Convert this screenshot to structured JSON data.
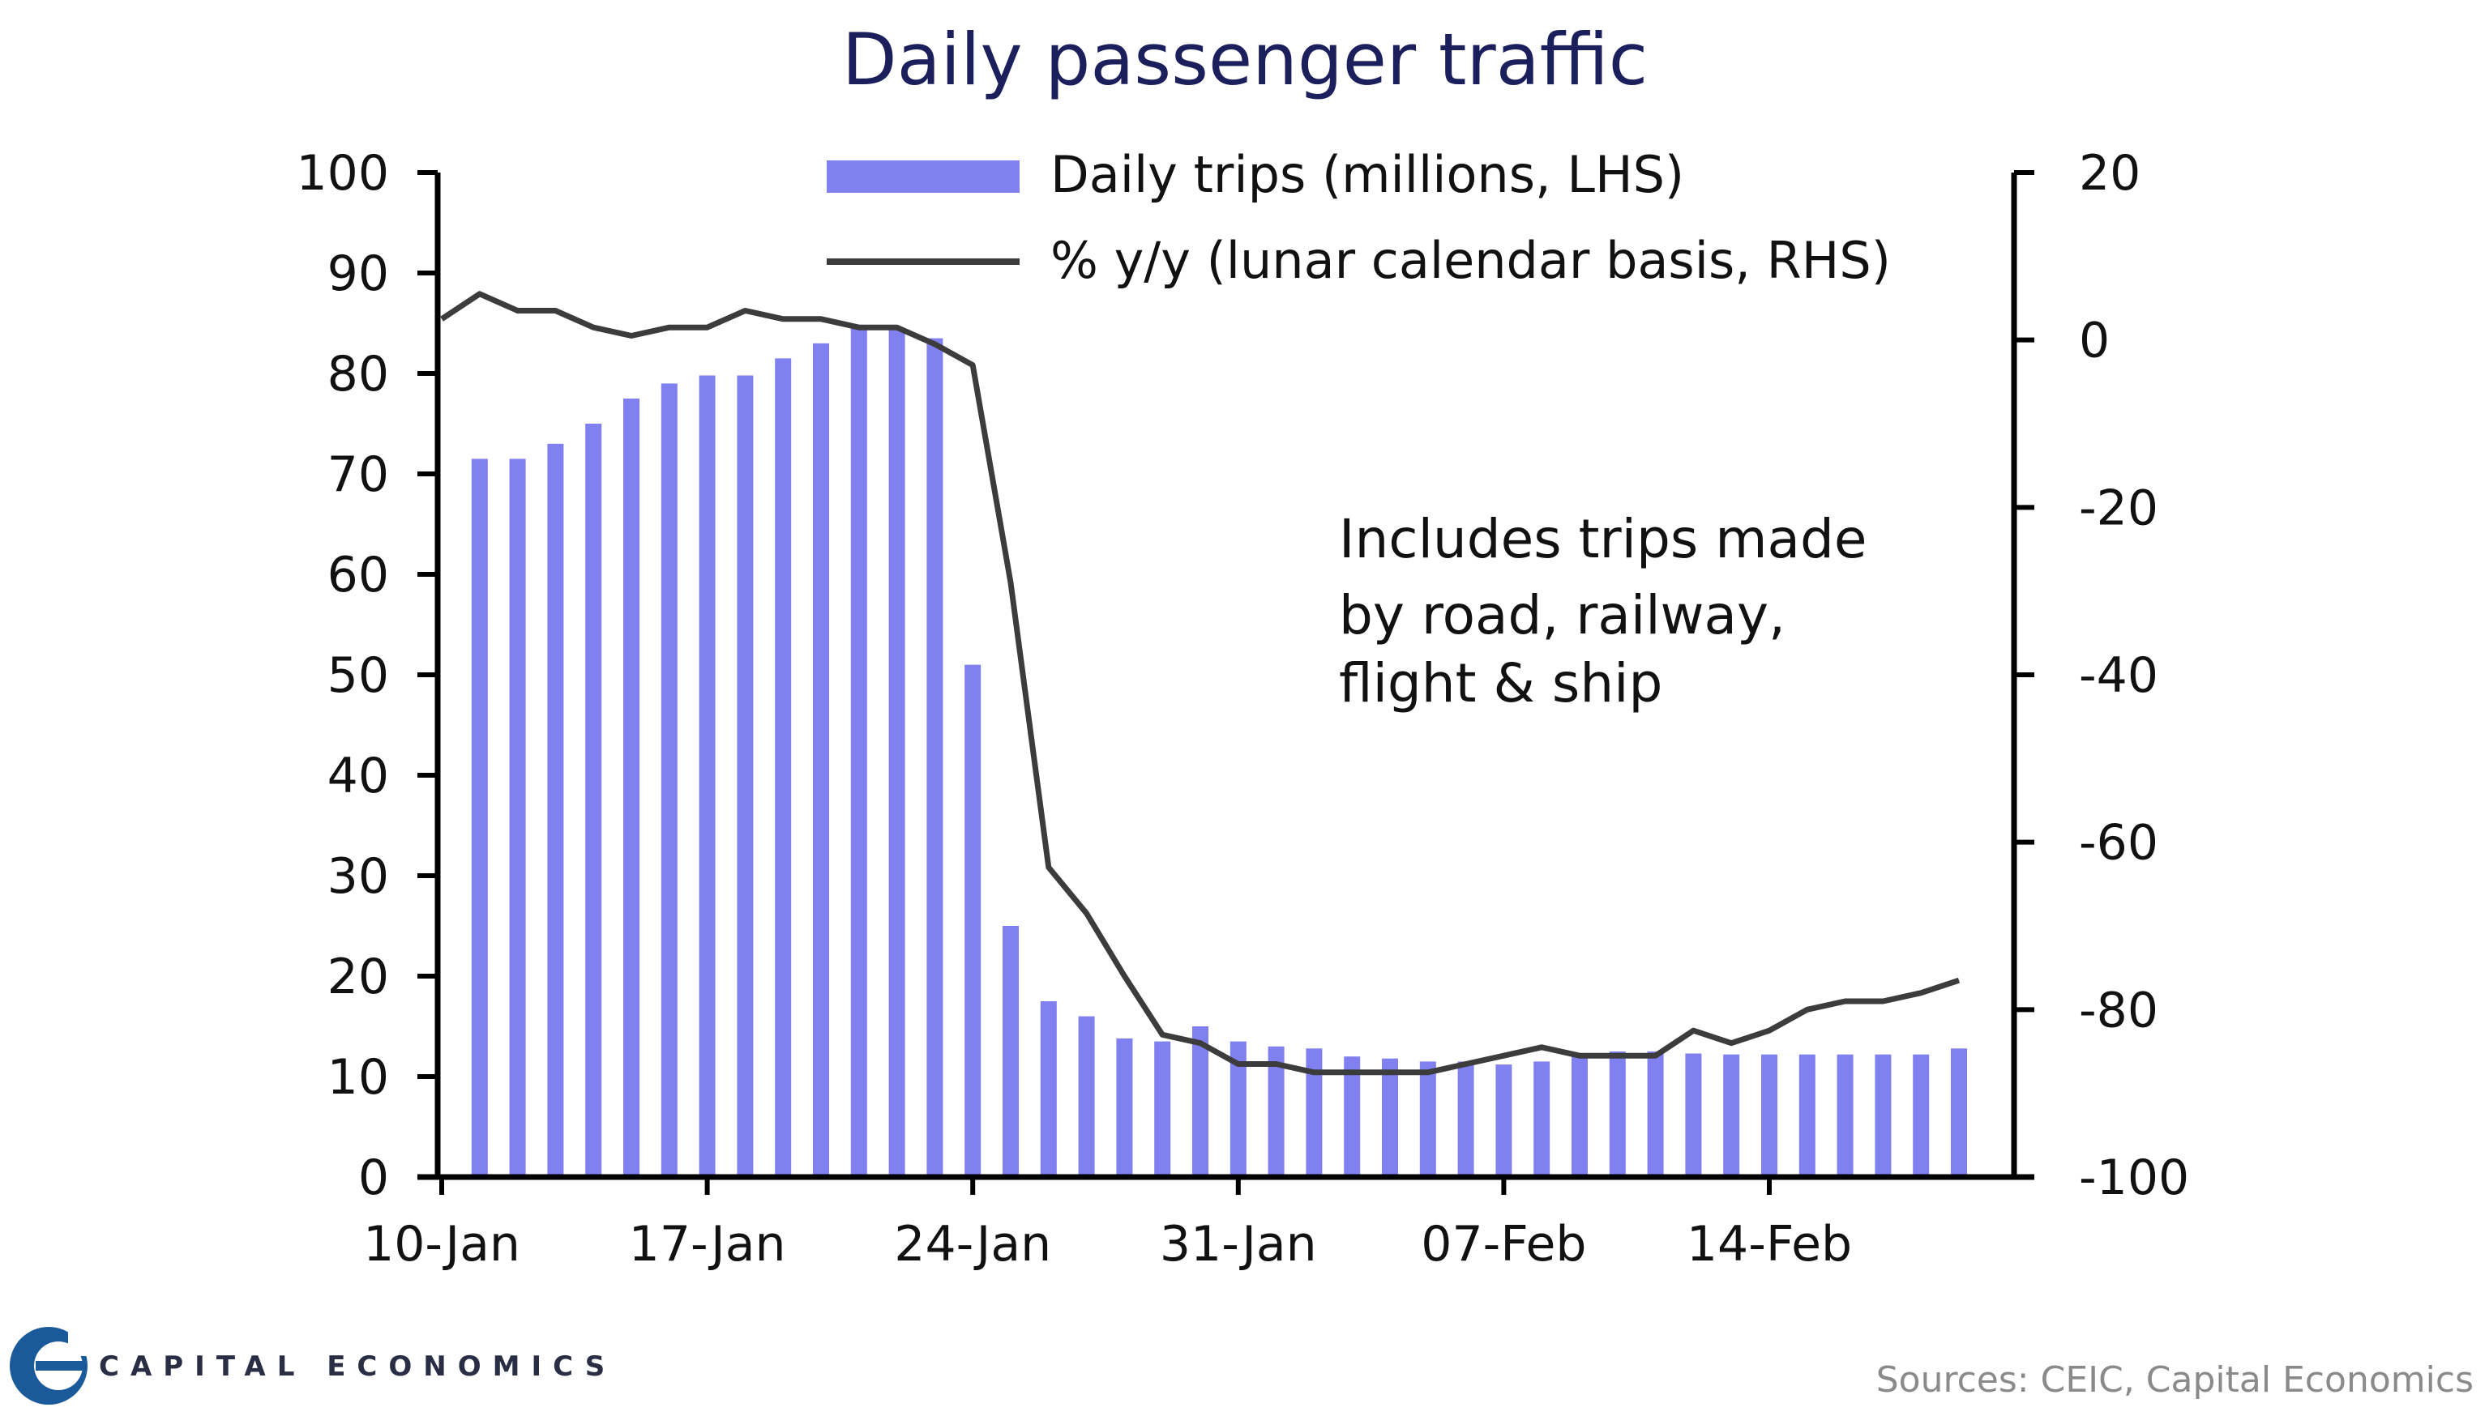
{
  "chart_data": {
    "type": "bar",
    "title": "Daily passenger traffic",
    "x_tick_labels": [
      "10-Jan",
      "17-Jan",
      "24-Jan",
      "31-Jan",
      "07-Feb",
      "14-Feb"
    ],
    "x_tick_index": [
      0,
      7,
      14,
      21,
      28,
      35
    ],
    "left_axis": {
      "ylim": [
        0,
        100
      ],
      "ticks": [
        0,
        10,
        20,
        30,
        40,
        50,
        60,
        70,
        80,
        90,
        100
      ]
    },
    "right_axis": {
      "ylim": [
        -100,
        20
      ],
      "ticks": [
        -100,
        -80,
        -60,
        -40,
        -20,
        0,
        20
      ]
    },
    "series": [
      {
        "name": "Daily trips (millions, LHS)",
        "type": "bar",
        "axis": "left",
        "color": "#8080f0",
        "x_dates": [
          "11-Jan",
          "12-Jan",
          "13-Jan",
          "14-Jan",
          "15-Jan",
          "16-Jan",
          "17-Jan",
          "18-Jan",
          "19-Jan",
          "20-Jan",
          "21-Jan",
          "22-Jan",
          "23-Jan",
          "24-Jan",
          "25-Jan",
          "26-Jan",
          "27-Jan",
          "28-Jan",
          "29-Jan",
          "30-Jan",
          "31-Jan",
          "01-Feb",
          "02-Feb",
          "03-Feb",
          "04-Feb",
          "05-Feb",
          "06-Feb",
          "07-Feb",
          "08-Feb",
          "09-Feb",
          "10-Feb",
          "11-Feb",
          "12-Feb",
          "13-Feb",
          "14-Feb",
          "15-Feb",
          "16-Feb",
          "17-Feb",
          "18-Feb",
          "19-Feb"
        ],
        "values": [
          71.5,
          71.5,
          73,
          75,
          77.5,
          79,
          79.8,
          79.8,
          81.5,
          83,
          84.5,
          84.5,
          83.5,
          51,
          25,
          17.5,
          16,
          13.8,
          13.5,
          15,
          13.5,
          13,
          12.8,
          12,
          11.8,
          11.5,
          11.5,
          11.2,
          11.5,
          12,
          12.5,
          12.5,
          12.3,
          12.2,
          12.2,
          12.2,
          12.2,
          12.2,
          12.2,
          12.8
        ]
      },
      {
        "name": "% y/y (lunar calendar basis, RHS)",
        "type": "line",
        "axis": "right",
        "color": "#3c3c3c",
        "x_dates": [
          "10-Jan",
          "11-Jan",
          "12-Jan",
          "13-Jan",
          "14-Jan",
          "15-Jan",
          "16-Jan",
          "17-Jan",
          "18-Jan",
          "19-Jan",
          "20-Jan",
          "21-Jan",
          "22-Jan",
          "23-Jan",
          "24-Jan",
          "25-Jan",
          "26-Jan",
          "27-Jan",
          "28-Jan",
          "29-Jan",
          "30-Jan",
          "31-Jan",
          "01-Feb",
          "02-Feb",
          "03-Feb",
          "04-Feb",
          "05-Feb",
          "06-Feb",
          "07-Feb",
          "08-Feb",
          "09-Feb",
          "10-Feb",
          "11-Feb",
          "12-Feb",
          "13-Feb",
          "14-Feb",
          "15-Feb",
          "16-Feb",
          "17-Feb",
          "18-Feb",
          "19-Feb"
        ],
        "values": [
          2.5,
          5.5,
          3.5,
          3.5,
          1.5,
          0.5,
          1.5,
          1.5,
          3.5,
          2.5,
          2.5,
          1.5,
          1.5,
          -0.5,
          -3,
          -29,
          -63,
          -68.5,
          -76,
          -83,
          -84,
          -86.5,
          -86.5,
          -87.5,
          -87.5,
          -87.5,
          -87.5,
          -86.5,
          -85.5,
          -84.5,
          -85.5,
          -85.5,
          -85.5,
          -82.5,
          -84,
          -82.5,
          -80,
          -79,
          -79,
          -78,
          -76.5
        ]
      }
    ],
    "legend": "top-center",
    "annotation": [
      "Includes  trips made",
      "by road, railway,",
      "flight  & ship"
    ],
    "grid": false
  },
  "source": "Sources: CEIC, Capital Economics",
  "brand": "CAPITAL ECONOMICS",
  "logo_icon": "capital-economics-e-logo-icon"
}
